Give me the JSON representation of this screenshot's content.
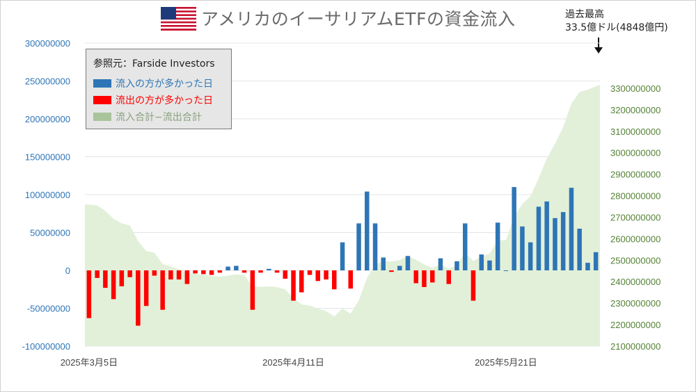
{
  "title": "アメリカのイーサリアムETFの資金流入",
  "note": {
    "line1": "過去最高",
    "line2": "33.5億ドル(4848億円)"
  },
  "legend": {
    "source": "参照元：Farside Investors",
    "inflow": "流入の方が多かった日",
    "outflow": "流出の方が多かった日",
    "cumulative": "流入合計−流出合計"
  },
  "colors": {
    "inflow": "#2e75b6",
    "outflow": "#ff0000",
    "cumulative": "#e2f0d9",
    "left_axis": "#2e75b6",
    "right_axis": "#548235"
  },
  "chart_data": {
    "type": "bar+area",
    "x_labels": [
      "2025年3月5日",
      "2025年4月11日",
      "2025年5月21日"
    ],
    "x_label_index": [
      0,
      25,
      51
    ],
    "left_axis": {
      "min": -100000000,
      "max": 300000000,
      "ticks": [
        "-100000000",
        "-50000000",
        "0",
        "50000000",
        "100000000",
        "150000000",
        "200000000",
        "250000000",
        "300000000"
      ]
    },
    "right_axis": {
      "min": 2100000000,
      "max": 3400000000,
      "ticks": [
        "2100000000",
        "2200000000",
        "2300000000",
        "2400000000",
        "2500000000",
        "2600000000",
        "2700000000",
        "2800000000",
        "2900000000",
        "3000000000",
        "3100000000",
        "3200000000",
        "3300000000"
      ]
    },
    "daily_flows": [
      -63000000,
      -10000000,
      -23000000,
      -38000000,
      -21000000,
      -9000000,
      -73000000,
      -47000000,
      -7000000,
      -52000000,
      -12000000,
      -12000000,
      -18000000,
      -4000000,
      -5000000,
      -6000000,
      -3000000,
      5000000,
      6000000,
      -3000000,
      -52000000,
      -3000000,
      2000000,
      -3000000,
      -11000000,
      -40000000,
      -29000000,
      -6000000,
      -14000000,
      -12000000,
      -25000000,
      37000000,
      -24000000,
      62000000,
      104000000,
      62000000,
      17000000,
      -2000000,
      6000000,
      19000000,
      -17000000,
      -22000000,
      -16000000,
      16000000,
      -18000000,
      12000000,
      62000000,
      -40000000,
      21000000,
      13000000,
      63000000,
      0,
      110000000,
      58000000,
      37000000,
      84000000,
      91000000,
      69000000,
      77000000,
      109000000,
      55000000,
      10000000,
      24000000
    ],
    "cumulative": [
      2760000000,
      2755000000,
      2730000000,
      2692000000,
      2671000000,
      2662000000,
      2589000000,
      2542000000,
      2535000000,
      2483000000,
      2471000000,
      2459000000,
      2441000000,
      2437000000,
      2432000000,
      2426000000,
      2423000000,
      2428000000,
      2434000000,
      2431000000,
      2379000000,
      2376000000,
      2378000000,
      2375000000,
      2364000000,
      2324000000,
      2295000000,
      2289000000,
      2275000000,
      2263000000,
      2238000000,
      2275000000,
      2251000000,
      2313000000,
      2417000000,
      2479000000,
      2496000000,
      2494000000,
      2500000000,
      2519000000,
      2502000000,
      2480000000,
      2464000000,
      2480000000,
      2462000000,
      2474000000,
      2536000000,
      2496000000,
      2517000000,
      2530000000,
      2593000000,
      2593000000,
      2703000000,
      2761000000,
      2798000000,
      2882000000,
      2973000000,
      3042000000,
      3119000000,
      3228000000,
      3283000000,
      3293000000,
      3317000000
    ]
  }
}
